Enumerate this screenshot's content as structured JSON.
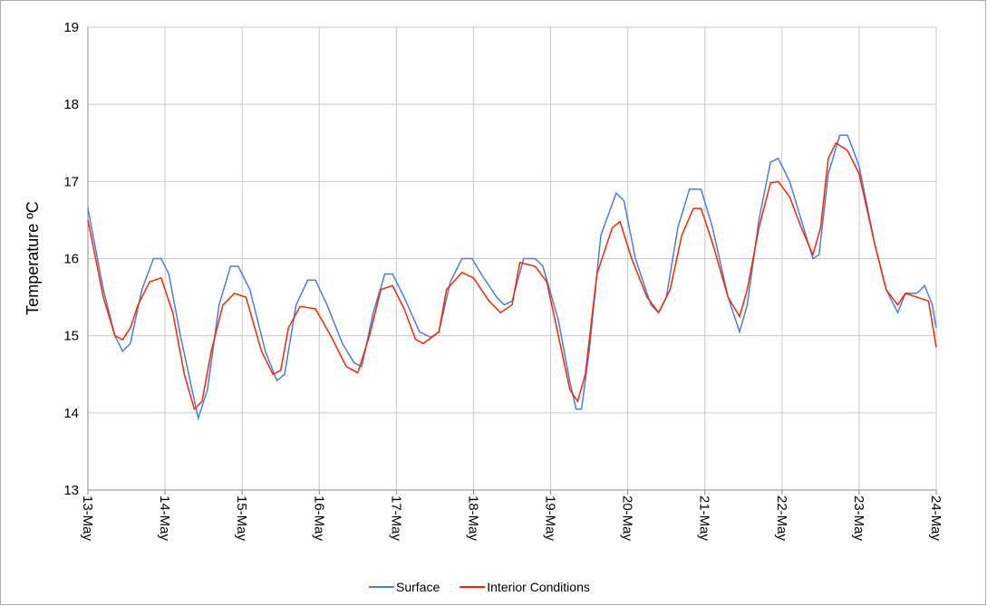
{
  "chart_data": {
    "type": "line",
    "y_label": "Temperature ºC",
    "xlim": [
      13,
      24
    ],
    "xticks": [
      {
        "value": 13,
        "label": "13-May"
      },
      {
        "value": 14,
        "label": "14-May"
      },
      {
        "value": 15,
        "label": "15-May"
      },
      {
        "value": 16,
        "label": "16-May"
      },
      {
        "value": 17,
        "label": "17-May"
      },
      {
        "value": 18,
        "label": "18-May"
      },
      {
        "value": 19,
        "label": "19-May"
      },
      {
        "value": 20,
        "label": "20-May"
      },
      {
        "value": 21,
        "label": "21-May"
      },
      {
        "value": 22,
        "label": "22-May"
      },
      {
        "value": 23,
        "label": "23-May"
      },
      {
        "value": 24,
        "label": "24-May"
      }
    ],
    "ylim": [
      13,
      19
    ],
    "yticks": [
      13,
      14,
      15,
      16,
      17,
      18,
      19
    ],
    "grid": true,
    "legend": "bottom",
    "series": [
      {
        "name": "Surface",
        "color": "#4a7ede",
        "x": [
          13.0,
          13.2,
          13.35,
          13.45,
          13.55,
          13.7,
          13.85,
          13.95,
          14.05,
          14.2,
          14.35,
          14.43,
          14.55,
          14.7,
          14.85,
          14.95,
          15.1,
          15.3,
          15.45,
          15.55,
          15.7,
          15.85,
          15.95,
          16.1,
          16.3,
          16.45,
          16.55,
          16.7,
          16.85,
          16.95,
          17.1,
          17.3,
          17.45,
          17.55,
          17.7,
          17.85,
          17.98,
          18.1,
          18.3,
          18.4,
          18.5,
          18.65,
          18.8,
          18.9,
          19.1,
          19.25,
          19.33,
          19.4,
          19.5,
          19.65,
          19.85,
          19.95,
          20.1,
          20.3,
          20.4,
          20.5,
          20.65,
          20.8,
          20.95,
          21.1,
          21.3,
          21.45,
          21.55,
          21.7,
          21.85,
          21.95,
          22.1,
          22.25,
          22.4,
          22.48,
          22.6,
          22.75,
          22.85,
          23.0,
          23.2,
          23.35,
          23.5,
          23.6,
          23.75,
          23.85,
          23.95,
          24.0
        ],
        "values": [
          16.65,
          15.6,
          15.0,
          14.8,
          14.9,
          15.6,
          16.0,
          16.0,
          15.8,
          15.0,
          14.3,
          13.93,
          14.3,
          15.4,
          15.9,
          15.9,
          15.6,
          14.8,
          14.42,
          14.5,
          15.4,
          15.72,
          15.72,
          15.4,
          14.9,
          14.65,
          14.6,
          15.3,
          15.8,
          15.8,
          15.5,
          15.05,
          14.98,
          15.05,
          15.7,
          16.0,
          16.0,
          15.8,
          15.5,
          15.4,
          15.45,
          16.0,
          16.0,
          15.9,
          15.2,
          14.4,
          14.05,
          14.05,
          14.8,
          16.3,
          16.85,
          16.75,
          16.0,
          15.4,
          15.3,
          15.5,
          16.4,
          16.9,
          16.9,
          16.4,
          15.5,
          15.05,
          15.4,
          16.5,
          17.25,
          17.3,
          17.0,
          16.5,
          16.0,
          16.05,
          17.1,
          17.6,
          17.6,
          17.2,
          16.2,
          15.6,
          15.3,
          15.55,
          15.55,
          15.65,
          15.4,
          15.1
        ]
      },
      {
        "name": "Interior Conditions",
        "color": "#ff2200",
        "x": [
          13.0,
          13.2,
          13.35,
          13.45,
          13.55,
          13.65,
          13.8,
          13.95,
          14.1,
          14.25,
          14.38,
          14.48,
          14.6,
          14.75,
          14.9,
          15.05,
          15.25,
          15.4,
          15.5,
          15.6,
          15.75,
          15.95,
          16.15,
          16.35,
          16.5,
          16.65,
          16.8,
          16.95,
          17.1,
          17.25,
          17.35,
          17.55,
          17.65,
          17.85,
          18.0,
          18.2,
          18.35,
          18.5,
          18.6,
          18.8,
          18.95,
          19.1,
          19.25,
          19.35,
          19.45,
          19.6,
          19.8,
          19.9,
          20.05,
          20.25,
          20.4,
          20.55,
          20.7,
          20.85,
          20.95,
          21.1,
          21.3,
          21.45,
          21.55,
          21.7,
          21.85,
          21.95,
          22.1,
          22.25,
          22.4,
          22.5,
          22.6,
          22.7,
          22.85,
          23.0,
          23.2,
          23.35,
          23.5,
          23.6,
          23.75,
          23.9,
          24.0
        ],
        "values": [
          16.5,
          15.5,
          15.0,
          14.95,
          15.1,
          15.4,
          15.7,
          15.75,
          15.3,
          14.5,
          14.05,
          14.15,
          14.8,
          15.4,
          15.55,
          15.5,
          14.8,
          14.5,
          14.55,
          15.1,
          15.38,
          15.35,
          15.0,
          14.6,
          14.52,
          15.0,
          15.6,
          15.65,
          15.35,
          14.95,
          14.9,
          15.05,
          15.6,
          15.82,
          15.75,
          15.45,
          15.3,
          15.4,
          15.95,
          15.9,
          15.7,
          15.0,
          14.3,
          14.15,
          14.5,
          15.8,
          16.4,
          16.48,
          16.0,
          15.5,
          15.3,
          15.6,
          16.3,
          16.65,
          16.65,
          16.2,
          15.5,
          15.25,
          15.6,
          16.4,
          16.98,
          17.0,
          16.8,
          16.4,
          16.05,
          16.4,
          17.3,
          17.5,
          17.4,
          17.1,
          16.2,
          15.6,
          15.4,
          15.55,
          15.5,
          15.45,
          14.85
        ]
      }
    ]
  }
}
